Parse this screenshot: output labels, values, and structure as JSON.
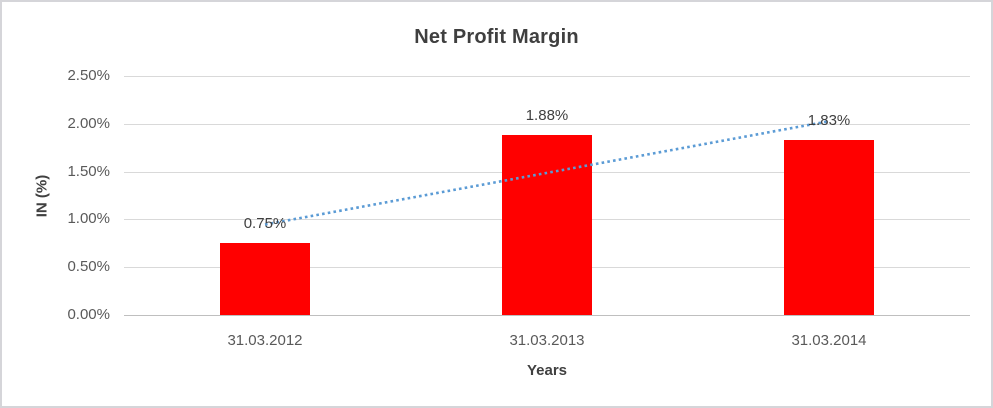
{
  "chart_data": {
    "type": "bar",
    "title": "Net Profit Margin",
    "categories": [
      "31.03.2012",
      "31.03.2013",
      "31.03.2014"
    ],
    "values": [
      0.75,
      1.88,
      1.83
    ],
    "data_labels": [
      "0.75%",
      "1.88%",
      "1.83%"
    ],
    "xlabel": "Years",
    "ylabel": "IN (%)",
    "ylim": [
      0,
      2.5
    ],
    "ytick_interval": 0.5,
    "ytick_labels": [
      "0.00%",
      "0.50%",
      "1.00%",
      "1.50%",
      "2.00%",
      "2.50%"
    ],
    "grid": true,
    "legend": "none",
    "trendline": {
      "type": "linear",
      "style": "dotted"
    }
  },
  "colors": {
    "bar": "#FF0000",
    "trendline": "#5B9BD5",
    "gridline": "#D9D9D9",
    "axis_line": "#BFBFBF",
    "title_text": "#3F3F3F",
    "axis_text": "#595959",
    "label_text": "#404040",
    "frame_border": "#D5D5D9",
    "background": "#FFFFFF"
  }
}
